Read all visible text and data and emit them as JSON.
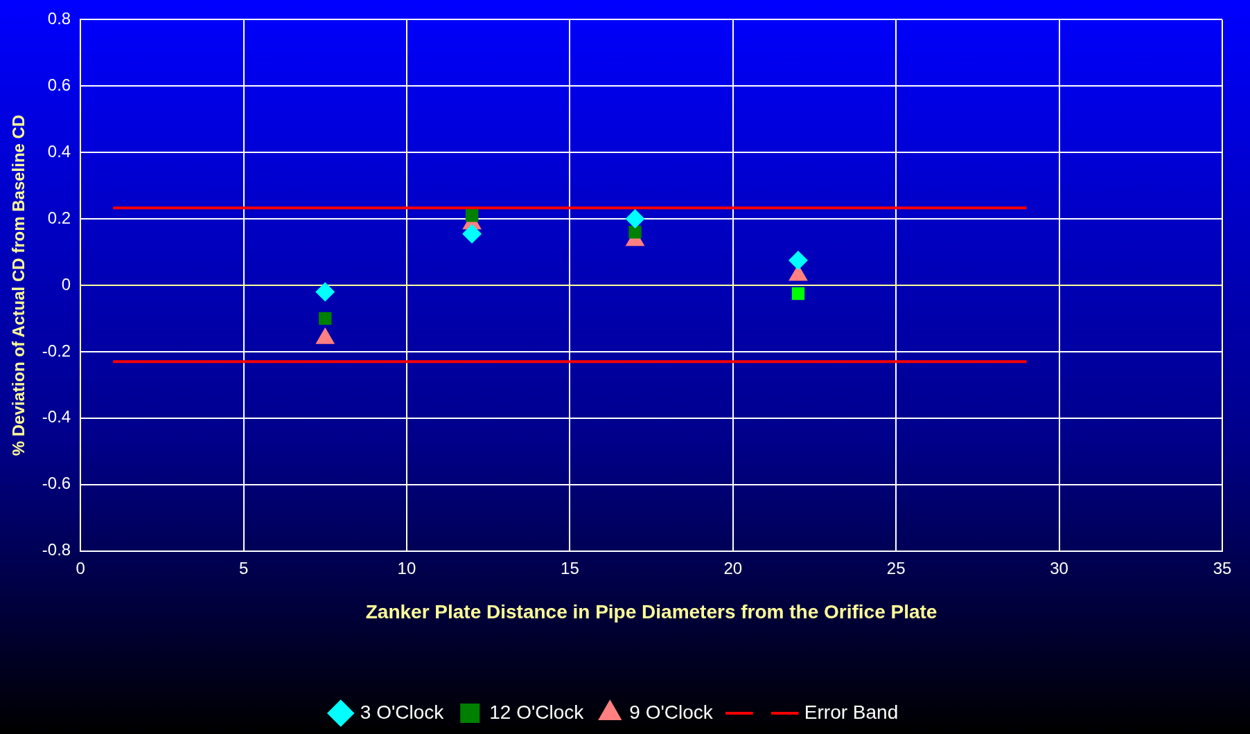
{
  "chart_data": {
    "type": "scatter",
    "xlabel": "Zanker Plate Distance in Pipe Diameters from the Orifice Plate",
    "ylabel": "% Deviation of Actual CD from Baseline CD",
    "xlim": [
      0,
      35
    ],
    "xticks": [
      0,
      5,
      10,
      15,
      20,
      25,
      30,
      35
    ],
    "ylim": [
      -0.8,
      0.8
    ],
    "yticks": [
      -0.8,
      -0.6,
      -0.4,
      -0.2,
      0,
      0.2,
      0.4,
      0.6,
      0.8
    ],
    "grid": true,
    "legend": "bottom",
    "ref_lines": [
      {
        "axis": "y",
        "value": 0,
        "color": "#ffff99"
      }
    ],
    "series": [
      {
        "name": "3 O'Clock",
        "color": "#00ffff",
        "marker": "diamond",
        "x": [
          7.5,
          12,
          17,
          22
        ],
        "values": [
          -0.02,
          0.155,
          0.2,
          0.075
        ]
      },
      {
        "name": "12 O'Clock",
        "color": "#008000",
        "colors": [
          "#008000",
          "#008000",
          "#008000",
          "#00ff00"
        ],
        "marker": "square",
        "x": [
          7.5,
          12,
          17,
          22
        ],
        "values": [
          -0.1,
          0.21,
          0.16,
          -0.025
        ]
      },
      {
        "name": "9 O'Clock",
        "color": "#ff8080",
        "marker": "triangle",
        "x": [
          7.5,
          12,
          17,
          22
        ],
        "values": [
          -0.16,
          0.185,
          0.135,
          0.03
        ]
      },
      {
        "type": "line",
        "color": "#ff0000",
        "marker": "none",
        "x": [
          1,
          29
        ],
        "values": [
          0.233,
          0.233
        ]
      },
      {
        "type": "line",
        "name": "Error Band",
        "color": "#ff0000",
        "marker": "none",
        "x": [
          1,
          29
        ],
        "values": [
          -0.23,
          -0.23
        ]
      }
    ]
  }
}
